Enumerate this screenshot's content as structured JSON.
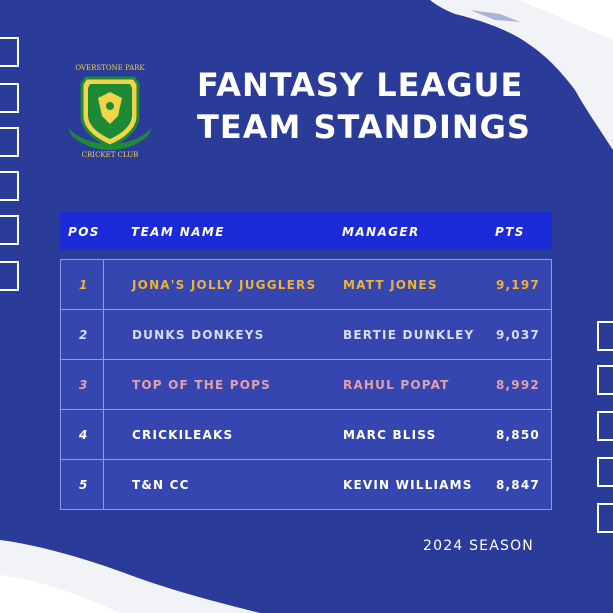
{
  "logo": {
    "top_text": "OVERSTONE PARK",
    "bottom_text": "CRICKET CLUB"
  },
  "title": {
    "line1": "FANTASY LEAGUE",
    "line2": "TEAM STANDINGS"
  },
  "table": {
    "headers": {
      "pos": "POS",
      "team": "TEAM NAME",
      "manager": "MANAGER",
      "pts": "PTS"
    },
    "rows": [
      {
        "pos": "1",
        "team": "JONA'S JOLLY JUGGLERS",
        "manager": "MATT JONES",
        "pts": "9,197",
        "color": "#f0b233"
      },
      {
        "pos": "2",
        "team": "DUNKS DONKEYS",
        "manager": "BERTIE DUNKLEY",
        "pts": "9,037",
        "color": "#d7dcf5"
      },
      {
        "pos": "3",
        "team": "TOP OF THE POPS",
        "manager": "RAHUL POPAT",
        "pts": "8,992",
        "color": "#e4a0a8"
      },
      {
        "pos": "4",
        "team": "CRICKILEAKS",
        "manager": "MARC BLISS",
        "pts": "8,850",
        "color": "#ffffff"
      },
      {
        "pos": "5",
        "team": "T&N CC",
        "manager": "KEVIN WILLIAMS",
        "pts": "8,847",
        "color": "#ffffff"
      }
    ]
  },
  "footer": {
    "season": "2024 SEASON"
  },
  "colors": {
    "background": "#2a3b9a",
    "header": "#1b2bd8",
    "gold": "#f0b233",
    "green": "#1f8a35"
  }
}
